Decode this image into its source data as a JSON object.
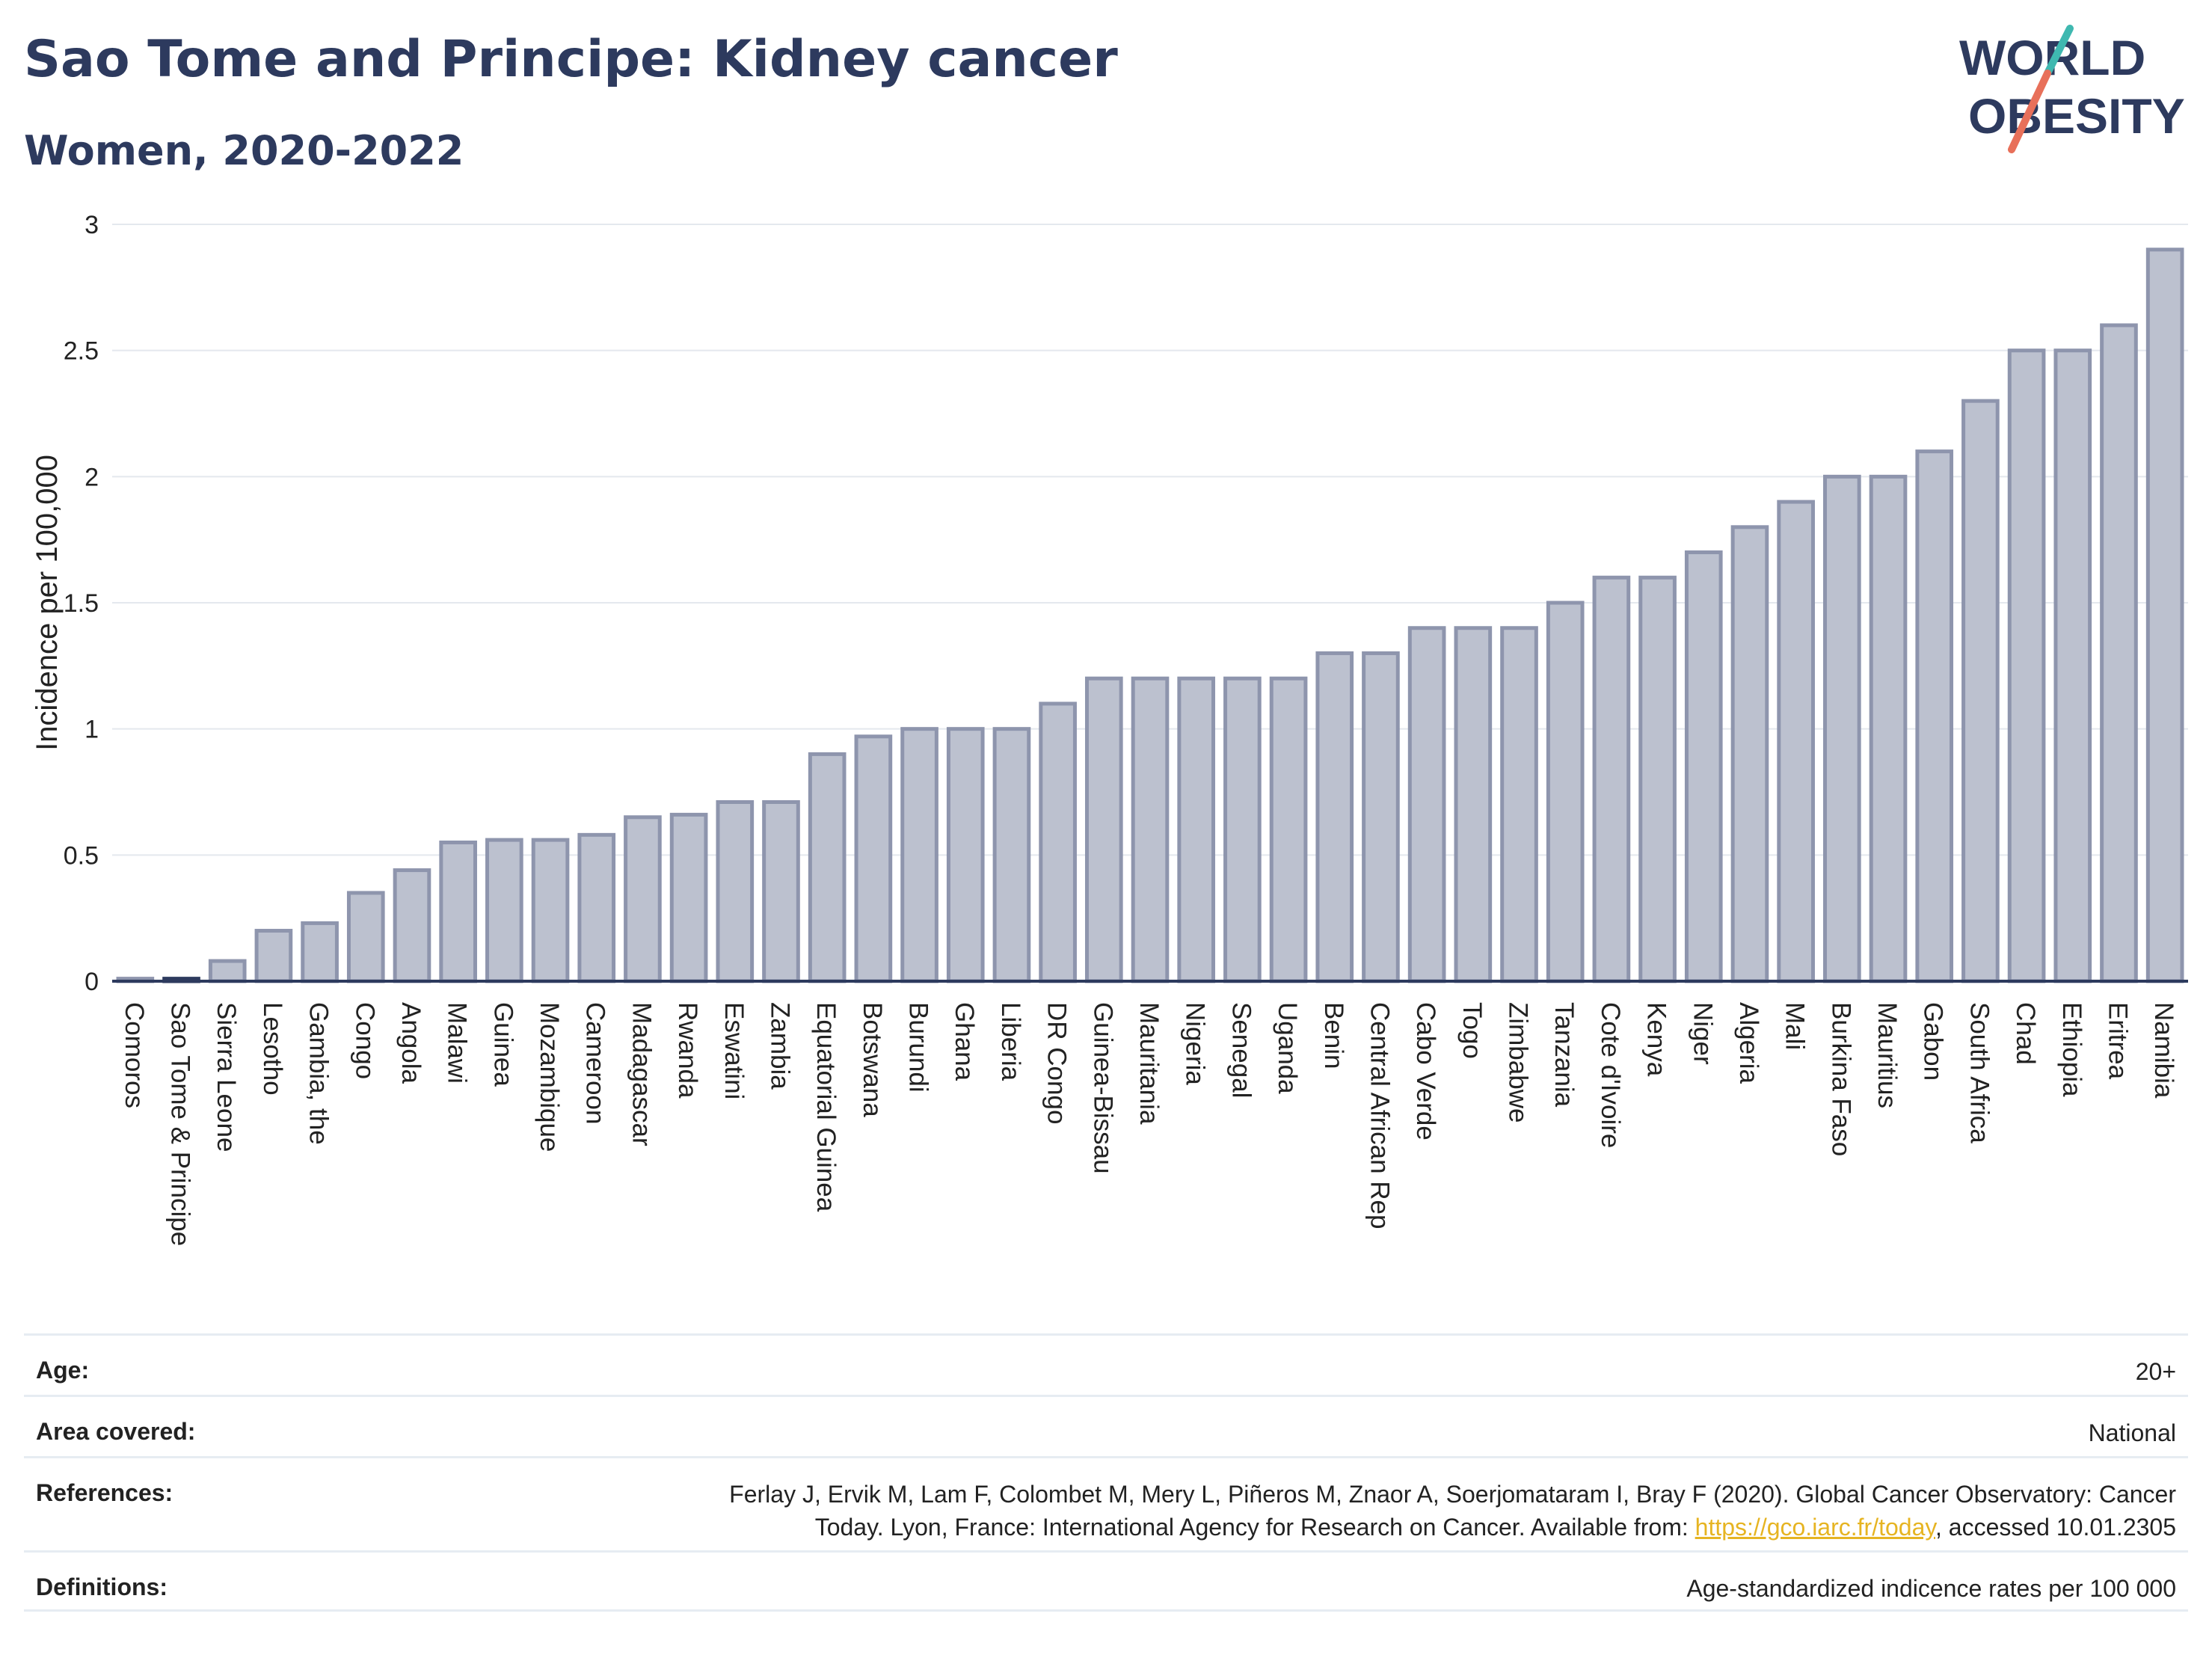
{
  "header": {
    "title": "Sao Tome and Principe: Kidney cancer",
    "subtitle": "Women, 2020-2022",
    "logo_line1": "WORLD",
    "logo_line2": "OBESITY"
  },
  "colors": {
    "title": "#2d3a5e",
    "bar_fill": "#bcc1cf",
    "bar_stroke": "#8e95ad",
    "highlight_fill": "#2d3a5e",
    "logo_teal": "#3fb8b0",
    "logo_red": "#e8705a",
    "link": "#e6b422"
  },
  "chart_data": {
    "type": "bar",
    "ylabel": "Incidence per 100,000",
    "ylim": [
      0,
      3
    ],
    "yticks": [
      "0",
      "0.5",
      "1",
      "1.5",
      "2",
      "2.5",
      "3"
    ],
    "grid": true,
    "highlight": "Sao Tome & Principe",
    "categories": [
      "Comoros",
      "Sao Tome & Principe",
      "Sierra Leone",
      "Lesotho",
      "Gambia, the",
      "Congo",
      "Angola",
      "Malawi",
      "Guinea",
      "Mozambique",
      "Cameroon",
      "Madagascar",
      "Rwanda",
      "Eswatini",
      "Zambia",
      "Equatorial Guinea",
      "Botswana",
      "Burundi",
      "Ghana",
      "Liberia",
      "DR Congo",
      "Guinea-Bissau",
      "Mauritania",
      "Nigeria",
      "Senegal",
      "Uganda",
      "Benin",
      "Central African Rep",
      "Cabo Verde",
      "Togo",
      "Zimbabwe",
      "Tanzania",
      "Cote d'Ivoire",
      "Kenya",
      "Niger",
      "Algeria",
      "Mali",
      "Burkina Faso",
      "Mauritius",
      "Gabon",
      "South Africa",
      "Chad",
      "Ethiopia",
      "Eritrea",
      "Namibia"
    ],
    "values": [
      0.01,
      0.01,
      0.08,
      0.2,
      0.23,
      0.35,
      0.44,
      0.55,
      0.56,
      0.56,
      0.58,
      0.65,
      0.66,
      0.71,
      0.71,
      0.9,
      0.97,
      1.0,
      1.0,
      1.0,
      1.1,
      1.2,
      1.2,
      1.2,
      1.2,
      1.2,
      1.3,
      1.3,
      1.4,
      1.4,
      1.4,
      1.5,
      1.6,
      1.6,
      1.7,
      1.8,
      1.9,
      2.0,
      2.0,
      2.1,
      2.3,
      2.5,
      2.5,
      2.6,
      2.9
    ]
  },
  "meta": {
    "age_label": "Age:",
    "age_value": "20+",
    "area_label": "Area covered:",
    "area_value": "National",
    "references_label": "References:",
    "references_line1": "Ferlay J, Ervik M, Lam F, Colombet M, Mery L, Piñeros M, Znaor A, Soerjomataram I, Bray F (2020). Global Cancer Observatory: Cancer",
    "references_line2_pre": "Today. Lyon, France: International Agency for Research on Cancer. Available from: ",
    "references_link": "https://gco.iarc.fr/today",
    "references_line2_post": ", accessed 10.01.2305",
    "definitions_label": "Definitions:",
    "definitions_value": "Age-standardized indicence rates per 100 000"
  }
}
